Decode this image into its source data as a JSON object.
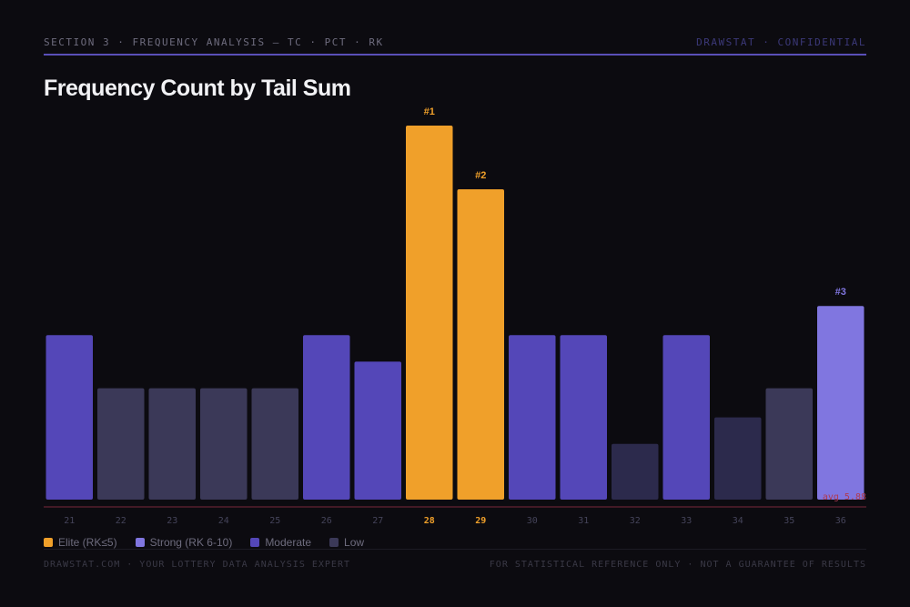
{
  "header": {
    "section": "SECTION 3 · FREQUENCY ANALYSIS — TC · PCT · RK",
    "brand": "DRAWSTAT · CONFIDENTIAL"
  },
  "colors": {
    "elite": "#f0a02a",
    "strong": "#8076e0",
    "moderate": "#5447b8",
    "low": "#3b3958",
    "low_dim": "#2c2a4c",
    "avg_line": "#7a2a3a",
    "avg_text": "#b03a50"
  },
  "chart_data": {
    "type": "bar",
    "title": "Frequency Count by Tail Sum",
    "categories": [
      "21",
      "22",
      "23",
      "24",
      "25",
      "26",
      "27",
      "28",
      "29",
      "30",
      "31",
      "32",
      "33",
      "34",
      "35",
      "36"
    ],
    "values": [
      6.2,
      4.2,
      4.2,
      4.2,
      4.2,
      6.2,
      5.2,
      14.1,
      11.7,
      6.2,
      6.2,
      2.1,
      6.2,
      3.1,
      4.2,
      7.3
    ],
    "tiers": [
      "moderate",
      "low",
      "low",
      "low",
      "low",
      "moderate",
      "moderate",
      "elite",
      "elite",
      "moderate",
      "moderate",
      "low_dim",
      "moderate",
      "low_dim",
      "low",
      "strong"
    ],
    "rank_labels": [
      "",
      "",
      "",
      "",
      "",
      "",
      "",
      "#1",
      "#2",
      "",
      "",
      "",
      "",
      "",
      "",
      "#3"
    ],
    "ylim": [
      0,
      14.1
    ],
    "average": {
      "label": "avg 5.88",
      "value": 5.88
    },
    "legend": [
      {
        "key": "elite",
        "label": "Elite (RK≤5)"
      },
      {
        "key": "strong",
        "label": "Strong (RK 6-10)"
      },
      {
        "key": "moderate",
        "label": "Moderate"
      },
      {
        "key": "low",
        "label": "Low"
      }
    ]
  },
  "footer": {
    "left": "DRAWSTAT.COM · YOUR LOTTERY DATA ANALYSIS EXPERT",
    "right": "FOR STATISTICAL REFERENCE ONLY · NOT A GUARANTEE OF RESULTS"
  }
}
